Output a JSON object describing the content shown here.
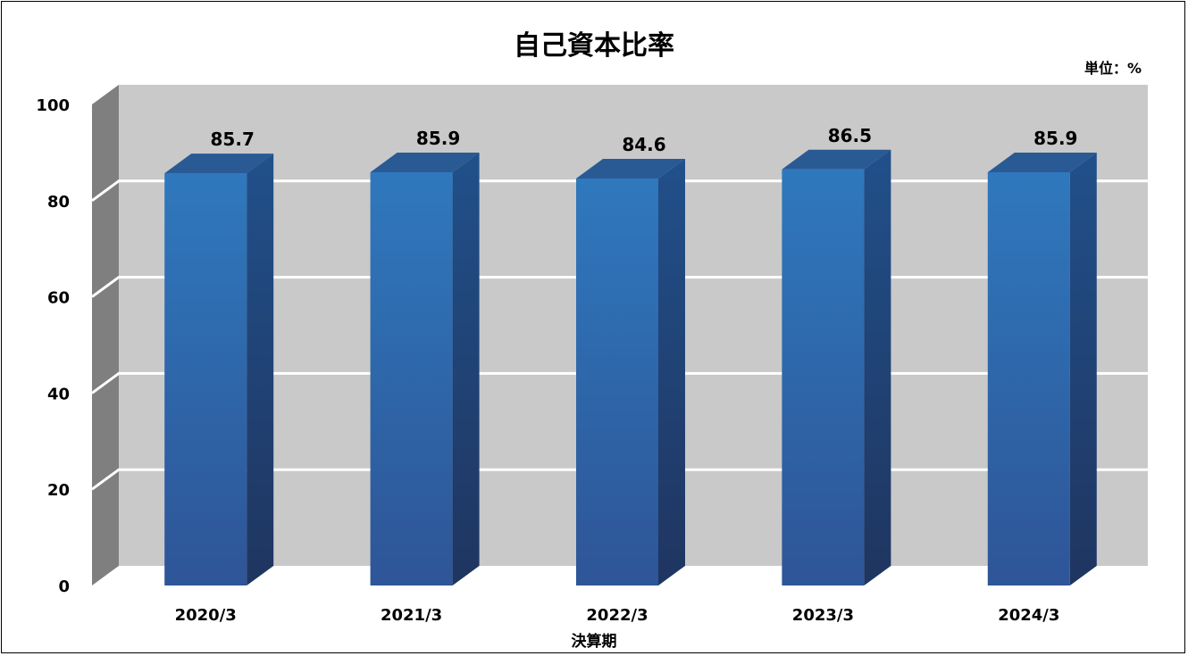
{
  "chart_data": {
    "type": "bar",
    "title": "自己資本比率",
    "unit_label": "単位：%",
    "xlabel": "決算期",
    "ylabel": "",
    "categories": [
      "2020/3",
      "2021/3",
      "2022/3",
      "2023/3",
      "2024/3"
    ],
    "values": [
      85.7,
      85.9,
      84.6,
      86.5,
      85.9
    ],
    "data_labels": [
      "85.7",
      "85.9",
      "84.6",
      "86.5",
      "85.9"
    ],
    "ylim": [
      0,
      100
    ],
    "yticks": [
      0,
      20,
      40,
      60,
      80,
      100
    ],
    "grid": true,
    "legend": "none",
    "style": "3d-column",
    "colors": {
      "bar_front_top": "#2f78bd",
      "bar_front_bottom": "#2e5597",
      "bar_side": "#1f3f6e",
      "bar_top": "#2a5a94",
      "wall": "#c9c9c9",
      "side_wall": "#7f7f7f",
      "gridline": "#ffffff"
    }
  }
}
